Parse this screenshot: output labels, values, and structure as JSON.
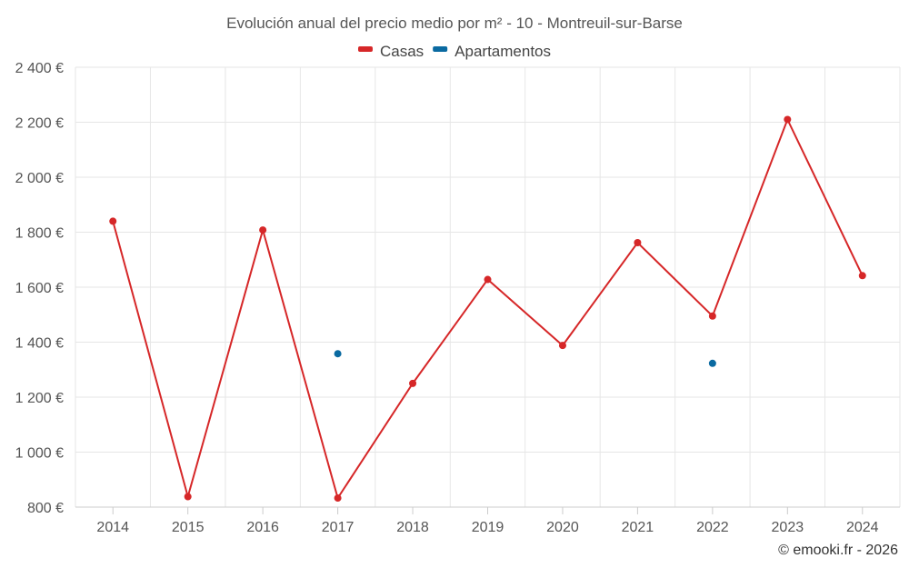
{
  "chart_data": {
    "type": "line",
    "title": "Evolución anual del precio medio por m² - 10 - Montreuil-sur-Barse",
    "categories": [
      "2014",
      "2015",
      "2016",
      "2017",
      "2018",
      "2019",
      "2020",
      "2021",
      "2022",
      "2023",
      "2024"
    ],
    "series": [
      {
        "name": "Casas",
        "color": "#d62728",
        "values": [
          1840,
          838,
          1808,
          833,
          1250,
          1628,
          1388,
          1762,
          1495,
          2210,
          1642
        ]
      },
      {
        "name": "Apartamentos",
        "color": "#0a6aa1",
        "values": [
          null,
          null,
          null,
          1358,
          null,
          null,
          null,
          null,
          1323,
          null,
          null
        ]
      }
    ],
    "ylim": [
      800,
      2400
    ],
    "yticks": [
      800,
      1000,
      1200,
      1400,
      1600,
      1800,
      2000,
      2200,
      2400
    ],
    "ytick_labels": [
      "800 €",
      "1 000 €",
      "1 200 €",
      "1 400 €",
      "1 600 €",
      "1 800 €",
      "2 000 €",
      "2 200 €",
      "2 400 €"
    ],
    "grid": true,
    "legend_position": "top-center",
    "xlabel": "",
    "ylabel": ""
  },
  "credit": "© emooki.fr - 2026"
}
